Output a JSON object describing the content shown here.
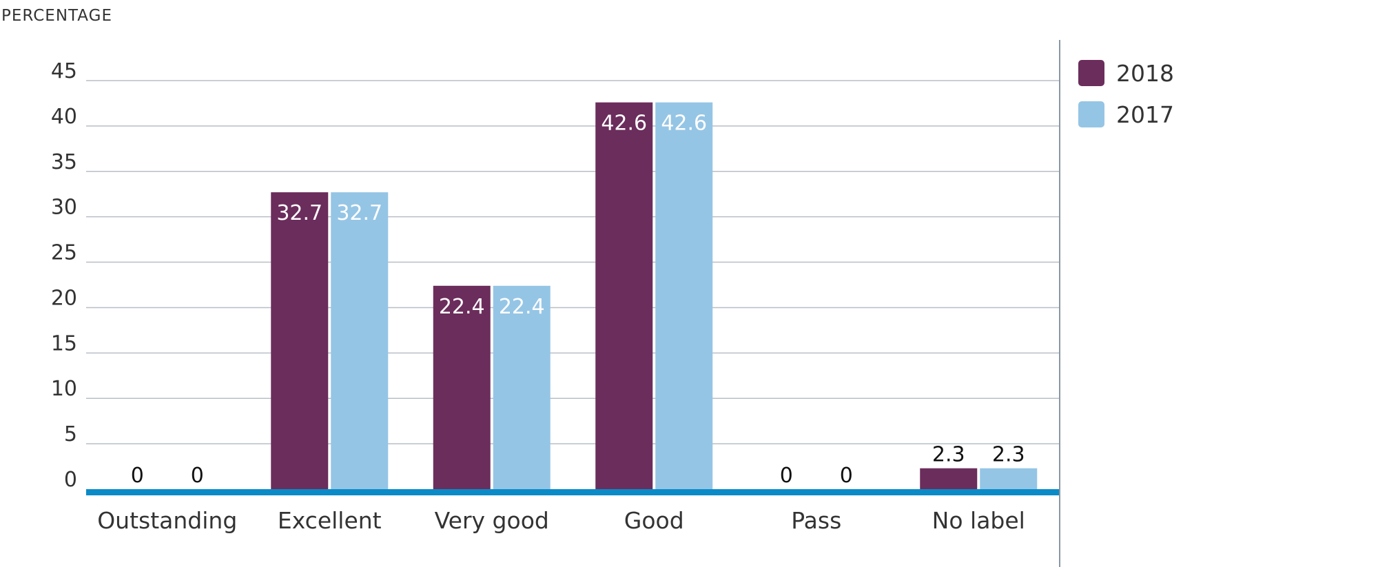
{
  "chart_data": {
    "type": "bar",
    "ylabel": "PERCENTAGE",
    "categories": [
      "Outstanding",
      "Excellent",
      "Very good",
      "Good",
      "Pass",
      "No label"
    ],
    "series": [
      {
        "name": "2018",
        "color": "#6b2d5c",
        "values": [
          0,
          32.7,
          22.4,
          42.6,
          0,
          2.3
        ]
      },
      {
        "name": "2017",
        "color": "#95c5e5",
        "values": [
          0,
          32.7,
          22.4,
          42.6,
          0,
          2.3
        ]
      }
    ],
    "ylim": [
      0,
      45
    ],
    "yticks": [
      0,
      5,
      10,
      15,
      20,
      25,
      30,
      35,
      40,
      45
    ],
    "grid": true,
    "legend": "right",
    "baseline_color": "#0a8bc7"
  }
}
